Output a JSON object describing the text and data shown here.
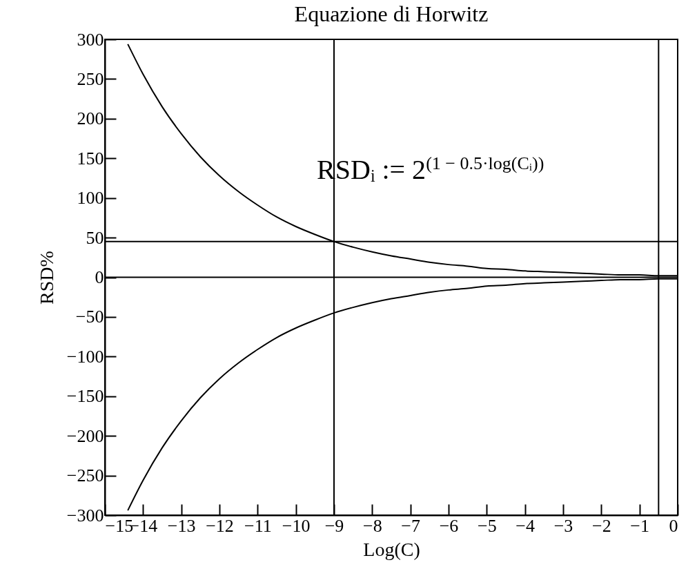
{
  "chart_data": {
    "type": "line",
    "title": "Equazione di Horwitz",
    "xlabel": "Log(C)",
    "ylabel": "RSD%",
    "x": [
      -14.4,
      -14,
      -13.5,
      -13,
      -12.5,
      -12,
      -11.5,
      -11,
      -10.5,
      -10,
      -9.5,
      -9,
      -8.5,
      -8,
      -7.5,
      -7,
      -6.5,
      -6,
      -5.5,
      -5,
      -4.5,
      -4,
      -3.5,
      -3,
      -2.5,
      -2,
      -1.5,
      -1,
      -0.5,
      0
    ],
    "series": [
      {
        "color": "#000000",
        "values": [
          294,
          256,
          215,
          181,
          152,
          128,
          108,
          91,
          76,
          64,
          54,
          45,
          38,
          32,
          27,
          23,
          19,
          16,
          14,
          11,
          10,
          8,
          7,
          6,
          5,
          4,
          3,
          3,
          2,
          2
        ]
      },
      {
        "color": "#000000",
        "values": [
          -294,
          -256,
          -215,
          -181,
          -152,
          -128,
          -108,
          -91,
          -76,
          -64,
          -54,
          -45,
          -38,
          -32,
          -27,
          -23,
          -19,
          -16,
          -14,
          -11,
          -10,
          -8,
          -7,
          -6,
          -5,
          -4,
          -3,
          -3,
          -2,
          -2
        ]
      }
    ],
    "xlim": [
      -15,
      0
    ],
    "xticks": [
      -15,
      -14,
      -13,
      -12,
      -11,
      -10,
      -9,
      -8,
      -7,
      -6,
      -5,
      -4,
      -3,
      -2,
      -1,
      0
    ],
    "ylim": [
      -300,
      300
    ],
    "yticks": [
      -300,
      -250,
      -200,
      -150,
      -100,
      -50,
      0,
      50,
      100,
      150,
      200,
      250,
      300
    ],
    "ref_lines": [
      {
        "axis": "x",
        "value": -9
      },
      {
        "axis": "x",
        "value": -0.5
      },
      {
        "axis": "y",
        "value": 45
      },
      {
        "axis": "y",
        "value": 0
      }
    ],
    "annotations": [
      "RSDᵢ := 2$^{(1 − 0.5·log(Cᵢ))}$"
    ],
    "marker": "none",
    "line_style": "solid",
    "grid": false,
    "legend": false
  }
}
